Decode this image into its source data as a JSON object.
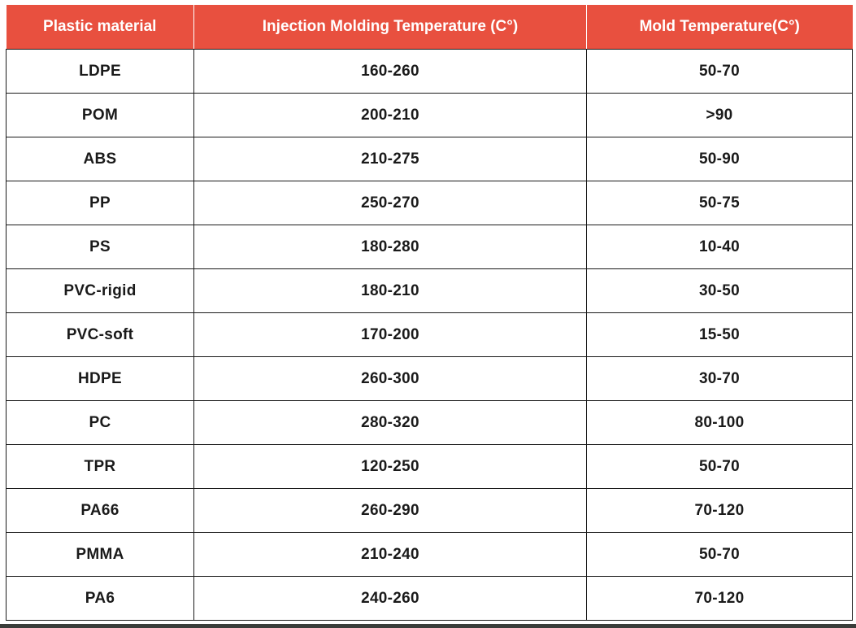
{
  "table": {
    "headers": [
      "Plastic material",
      "Injection Molding Temperature (C°)",
      "Mold Temperature(C°)"
    ],
    "rows": [
      [
        "LDPE",
        "160-260",
        "50-70"
      ],
      [
        "POM",
        "200-210",
        ">90"
      ],
      [
        "ABS",
        "210-275",
        "50-90"
      ],
      [
        "PP",
        "250-270",
        "50-75"
      ],
      [
        "PS",
        "180-280",
        "10-40"
      ],
      [
        "PVC-rigid",
        "180-210",
        "30-50"
      ],
      [
        "PVC-soft",
        "170-200",
        "15-50"
      ],
      [
        "HDPE",
        "260-300",
        "30-70"
      ],
      [
        "PC",
        "280-320",
        "80-100"
      ],
      [
        "TPR",
        "120-250",
        "50-70"
      ],
      [
        "PA66",
        "260-290",
        "70-120"
      ],
      [
        "PMMA",
        "210-240",
        "50-70"
      ],
      [
        "PA6",
        "240-260",
        "70-120"
      ]
    ]
  },
  "colors": {
    "header_bg": "#e8503f",
    "header_text": "#ffffff",
    "border": "#1a1a1a",
    "cell_text": "#1a1a1a"
  }
}
